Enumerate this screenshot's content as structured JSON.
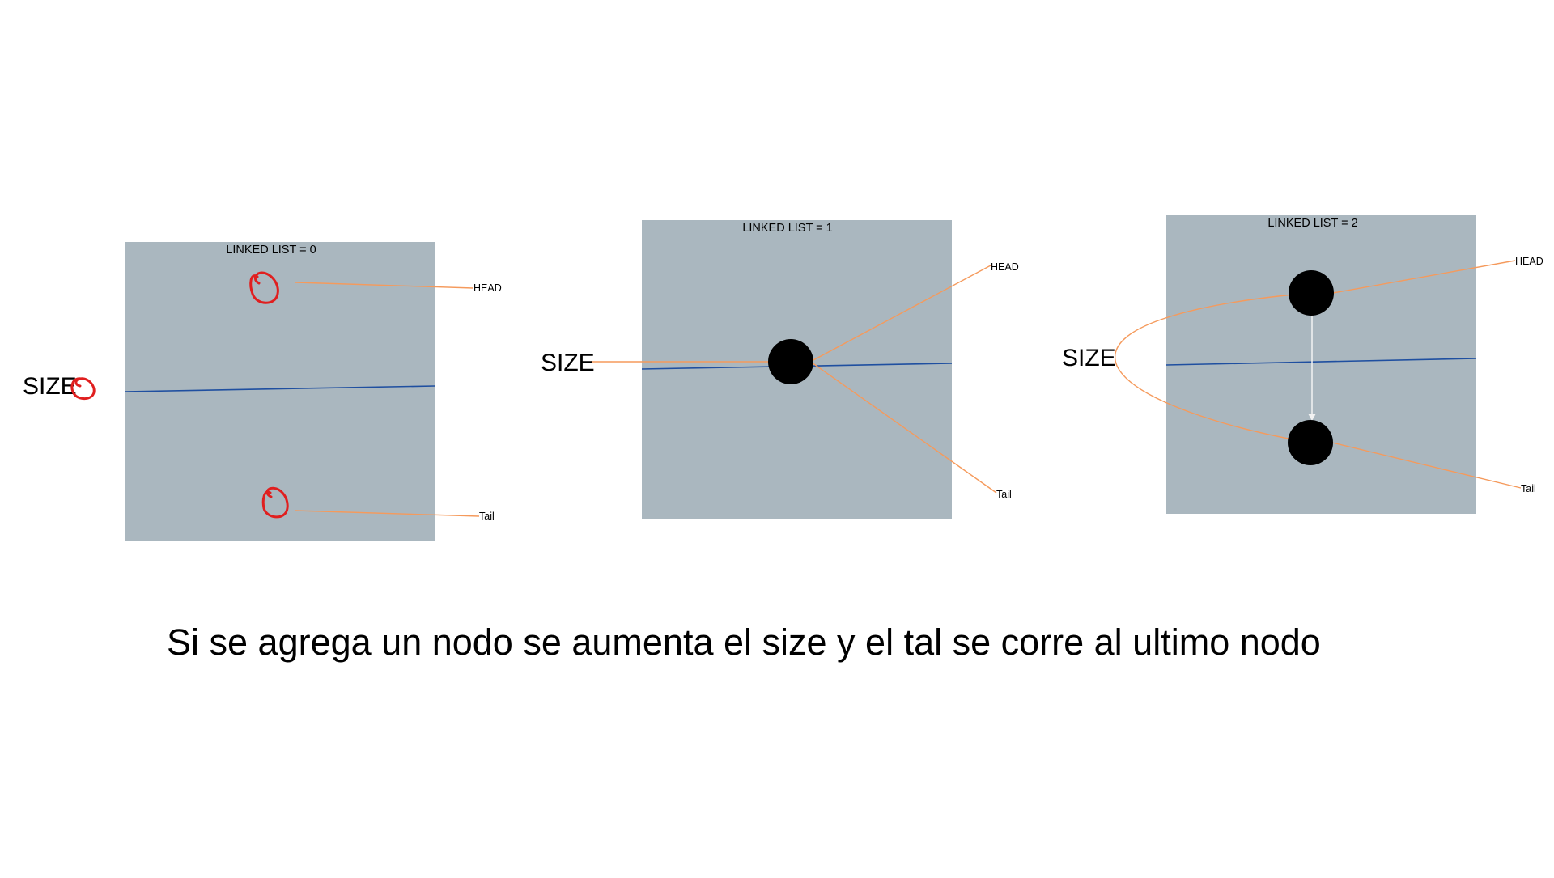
{
  "colors": {
    "canvas": "#ffffff",
    "panel": "#aab7bf",
    "axis_line": "#1f4fa0",
    "pointer_line": "#f59a5c",
    "node": "#000000",
    "node_link": "#f2f2f2",
    "null_mark": "#e01f1f"
  },
  "panels": [
    {
      "title": "LINKED LIST = 0",
      "node_count": 0,
      "head_label": "HEAD",
      "tail_label": "Tail",
      "size_label": "SIZE",
      "head_value": "null",
      "tail_value": "null",
      "size_value": "0"
    },
    {
      "title": "LINKED LIST = 1",
      "node_count": 1,
      "head_label": "HEAD",
      "tail_label": "Tail",
      "size_label": "SIZE"
    },
    {
      "title": "LINKED LIST = 2",
      "node_count": 2,
      "head_label": "HEAD",
      "tail_label": "Tail",
      "size_label": "SIZE"
    }
  ],
  "icons": {
    "null_marker": "red-hand-drawn-circle-icon",
    "node": "black-node-circle"
  },
  "caption": "Si se agrega un nodo se aumenta el size y el tal se corre al ultimo nodo"
}
